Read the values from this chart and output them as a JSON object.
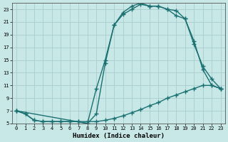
{
  "title": "",
  "xlabel": "Humidex (Indice chaleur)",
  "ylabel": "",
  "bg_color": "#c8e8e8",
  "line_color": "#1a7070",
  "grid_color": "#aacccc",
  "xlim": [
    -0.5,
    23.5
  ],
  "ylim": [
    5,
    24
  ],
  "xticks": [
    0,
    1,
    2,
    3,
    4,
    5,
    6,
    7,
    8,
    9,
    10,
    11,
    12,
    13,
    14,
    15,
    16,
    17,
    18,
    19,
    20,
    21,
    22,
    23
  ],
  "yticks": [
    5,
    7,
    9,
    11,
    13,
    15,
    17,
    19,
    21,
    23
  ],
  "line1_x": [
    0,
    1,
    2,
    3,
    4,
    5,
    6,
    7,
    8,
    9,
    10,
    11,
    12,
    13,
    14,
    15,
    16,
    17,
    18,
    19,
    20,
    21,
    22,
    23
  ],
  "line1_y": [
    7.0,
    6.5,
    5.5,
    5.3,
    5.3,
    5.3,
    5.3,
    5.3,
    5.3,
    5.3,
    5.5,
    5.8,
    6.2,
    6.7,
    7.2,
    7.8,
    8.3,
    9.0,
    9.5,
    10.0,
    10.5,
    11.0,
    11.0,
    10.5
  ],
  "line2_x": [
    0,
    1,
    2,
    3,
    4,
    5,
    6,
    7,
    8,
    9,
    10,
    11,
    12,
    13,
    14,
    15,
    16,
    17,
    18,
    19,
    20,
    21,
    22,
    23
  ],
  "line2_y": [
    7.0,
    6.5,
    5.5,
    5.3,
    5.3,
    5.3,
    5.3,
    5.3,
    5.0,
    10.5,
    15.0,
    20.5,
    22.5,
    23.5,
    24.0,
    23.5,
    23.5,
    23.0,
    22.0,
    21.5,
    17.5,
    14.0,
    12.0,
    10.5
  ],
  "line3_x": [
    0,
    8,
    9,
    10,
    11,
    12,
    13,
    14,
    15,
    16,
    17,
    18,
    19,
    20,
    21,
    22,
    23
  ],
  "line3_y": [
    7.0,
    5.0,
    6.5,
    14.5,
    20.5,
    22.2,
    23.0,
    23.8,
    23.5,
    23.5,
    23.0,
    22.8,
    21.5,
    18.0,
    13.5,
    11.0,
    10.5
  ],
  "marker_style": "+",
  "marker_size": 4,
  "line_width": 1.0
}
